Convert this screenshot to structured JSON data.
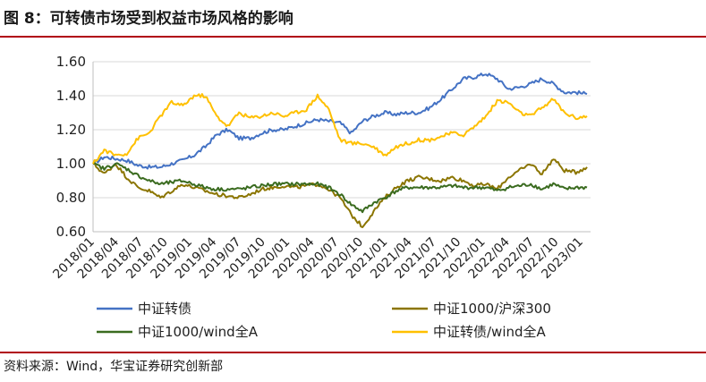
{
  "figure": {
    "title": "图 8：可转债市场受到权益市场风格的影响",
    "source": "资料来源：Wind，华宝证券研究创新部"
  },
  "chart_data": {
    "type": "line",
    "ylim": [
      0.6,
      1.6
    ],
    "y_ticks": [
      "1.60",
      "1.40",
      "1.20",
      "1.00",
      "0.80",
      "0.60"
    ],
    "x_ticks": [
      "2018/01",
      "2018/04",
      "2018/07",
      "2018/10",
      "2019/01",
      "2019/04",
      "2019/07",
      "2019/10",
      "2020/01",
      "2020/04",
      "2020/07",
      "2020/10",
      "2021/01",
      "2021/04",
      "2021/07",
      "2021/10",
      "2022/01",
      "2022/04",
      "2022/07",
      "2022/10",
      "2023/01"
    ],
    "grid": true,
    "legend": "bottom",
    "series": [
      {
        "name": "中证转债",
        "color": "#4472c4",
        "values": [
          1.0,
          1.04,
          1.03,
          1.02,
          0.99,
          0.98,
          0.98,
          1.0,
          1.02,
          1.05,
          1.1,
          1.17,
          1.2,
          1.15,
          1.15,
          1.18,
          1.2,
          1.2,
          1.22,
          1.24,
          1.26,
          1.25,
          1.24,
          1.18,
          1.25,
          1.28,
          1.3,
          1.29,
          1.3,
          1.3,
          1.33,
          1.38,
          1.44,
          1.5,
          1.51,
          1.53,
          1.5,
          1.44,
          1.45,
          1.47,
          1.5,
          1.47,
          1.42,
          1.42,
          1.41
        ]
      },
      {
        "name": "中证1000/沪深300",
        "color": "#8b7500",
        "values": [
          1.0,
          0.94,
          1.0,
          0.92,
          0.86,
          0.84,
          0.8,
          0.84,
          0.88,
          0.86,
          0.84,
          0.82,
          0.81,
          0.8,
          0.82,
          0.85,
          0.86,
          0.87,
          0.86,
          0.87,
          0.88,
          0.85,
          0.8,
          0.7,
          0.63,
          0.72,
          0.8,
          0.86,
          0.9,
          0.92,
          0.91,
          0.9,
          0.92,
          0.9,
          0.87,
          0.88,
          0.85,
          0.92,
          0.96,
          1.0,
          0.94,
          1.03,
          0.96,
          0.95,
          0.98
        ]
      },
      {
        "name": "中证1000/wind全A",
        "color": "#3a6b1f",
        "values": [
          1.0,
          0.97,
          1.0,
          0.97,
          0.93,
          0.9,
          0.88,
          0.89,
          0.9,
          0.88,
          0.86,
          0.85,
          0.85,
          0.85,
          0.86,
          0.87,
          0.88,
          0.88,
          0.88,
          0.88,
          0.88,
          0.86,
          0.82,
          0.76,
          0.72,
          0.77,
          0.8,
          0.84,
          0.86,
          0.86,
          0.86,
          0.86,
          0.87,
          0.86,
          0.86,
          0.86,
          0.84,
          0.86,
          0.87,
          0.88,
          0.85,
          0.88,
          0.85,
          0.86,
          0.86
        ]
      },
      {
        "name": "中证转债/wind全A",
        "color": "#ffc000",
        "values": [
          1.0,
          1.08,
          1.05,
          1.06,
          1.15,
          1.18,
          1.28,
          1.36,
          1.34,
          1.4,
          1.4,
          1.28,
          1.22,
          1.3,
          1.27,
          1.28,
          1.3,
          1.28,
          1.3,
          1.32,
          1.4,
          1.32,
          1.14,
          1.12,
          1.12,
          1.1,
          1.05,
          1.1,
          1.12,
          1.14,
          1.14,
          1.16,
          1.18,
          1.17,
          1.22,
          1.28,
          1.37,
          1.36,
          1.3,
          1.28,
          1.33,
          1.38,
          1.3,
          1.27,
          1.28
        ]
      }
    ]
  }
}
